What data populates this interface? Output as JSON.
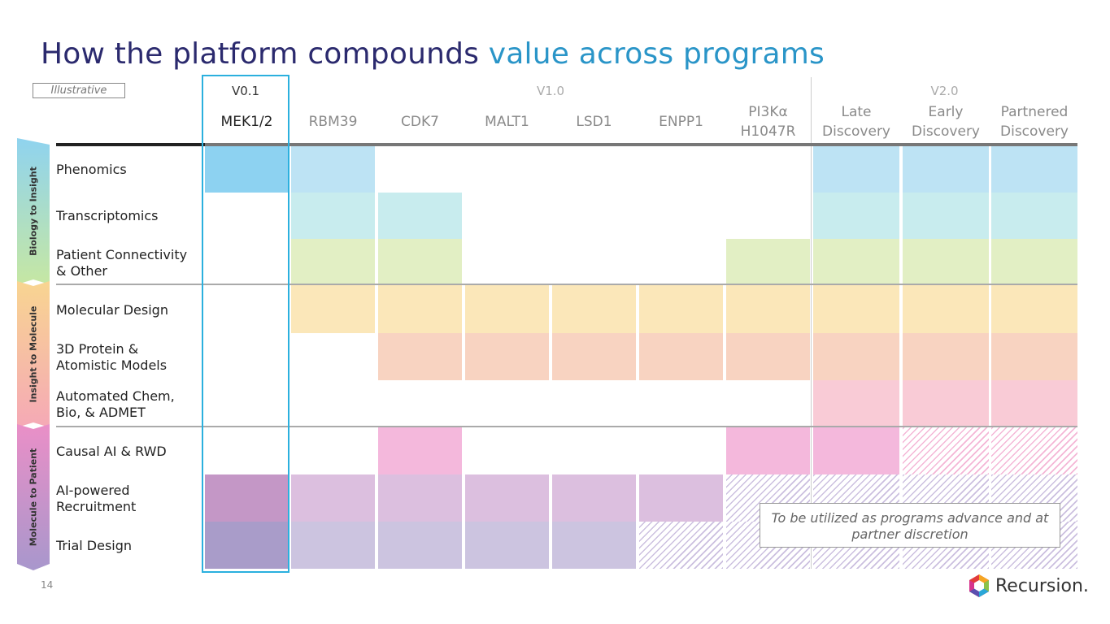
{
  "title": {
    "part1": "How the platform compounds ",
    "part2": "value across programs"
  },
  "tag": "Illustrative",
  "versions": [
    "V0.1",
    "V1.0",
    "V2.0"
  ],
  "columns": [
    "MEK1/2",
    "RBM39",
    "CDK7",
    "MALT1",
    "LSD1",
    "ENPP1",
    "PI3Kα H1047R",
    "Late Discovery",
    "Early Discovery",
    "Partnered Discovery"
  ],
  "stages": [
    "Biology to Insight",
    "Insight to Molecule",
    "Molecule to Patient"
  ],
  "rows": [
    "Phenomics",
    "Transcriptomics",
    "Patient Connectivity & Other",
    "Molecular Design",
    "3D Protein & Atomistic Models",
    "Automated Chem, Bio, & ADMET",
    "Causal AI & RWD",
    "AI-powered Recruitment",
    "Trial Design"
  ],
  "note": "To be utilized as programs advance and at partner discretion",
  "page_number": "14",
  "brand": "Recursion.",
  "colors": {
    "title_dark": "#2b2a6e",
    "title_light": "#2a95c8",
    "highlight_box": "#2bb0de",
    "phenomics": "#bde3f4",
    "transcriptomics": "#c8ecee",
    "patient_connectivity": "#e2efc4",
    "molecular_design": "#fbe7b9",
    "protein_models": "#f8d3c1",
    "automated_chem": "#f9cbd6",
    "causal_ai": "#f4b8dc",
    "recruitment": "#dcbfdf",
    "trial_design": "#ccc4e0"
  },
  "grid": [
    [
      "solid",
      "solid",
      "",
      "",
      "",
      "",
      "",
      "solid",
      "solid",
      "solid"
    ],
    [
      "",
      "solid",
      "solid",
      "",
      "",
      "",
      "",
      "solid",
      "solid",
      "solid"
    ],
    [
      "",
      "solid",
      "solid",
      "",
      "",
      "",
      "solid",
      "solid",
      "solid",
      "solid"
    ],
    [
      "",
      "solid",
      "solid",
      "solid",
      "solid",
      "solid",
      "solid",
      "solid",
      "solid",
      "solid"
    ],
    [
      "",
      "",
      "solid",
      "solid",
      "solid",
      "solid",
      "solid",
      "solid",
      "solid",
      "solid"
    ],
    [
      "",
      "",
      "",
      "",
      "",
      "",
      "",
      "solid",
      "solid",
      "solid"
    ],
    [
      "",
      "",
      "solid",
      "",
      "",
      "",
      "solid",
      "solid",
      "hatch",
      "hatch"
    ],
    [
      "solid",
      "solid",
      "solid",
      "solid",
      "solid",
      "solid",
      "hatch",
      "hatch",
      "hatch",
      "hatch"
    ],
    [
      "solid",
      "solid",
      "solid",
      "solid",
      "solid",
      "hatch",
      "hatch",
      "hatch",
      "hatch",
      "hatch"
    ]
  ]
}
